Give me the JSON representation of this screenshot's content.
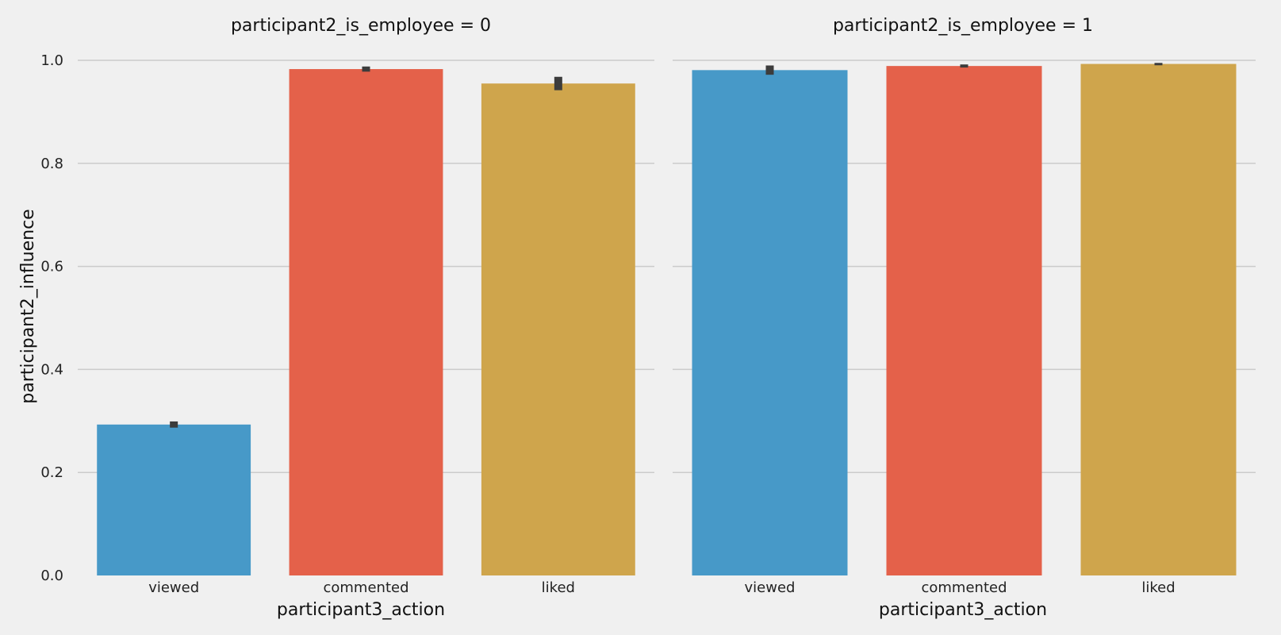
{
  "chart_data": {
    "type": "bar",
    "facet_variable": "participant2_is_employee",
    "xlabel": "participant3_action",
    "ylabel": "participant2_influence",
    "ylim": [
      0,
      1.0
    ],
    "yticks": [
      "0.0",
      "0.2",
      "0.4",
      "0.6",
      "0.8",
      "1.0"
    ],
    "ytick_values": [
      0,
      0.2,
      0.4,
      0.6,
      0.8,
      1.0
    ],
    "grid": true,
    "colors": {
      "viewed": "#4799c8",
      "commented": "#e4614a",
      "liked": "#cfa54c",
      "error_bar": "#3c3c3c"
    },
    "categories": [
      "viewed",
      "commented",
      "liked"
    ],
    "panels": [
      {
        "title": "participant2_is_employee = 0",
        "values": [
          0.293,
          0.983,
          0.955
        ],
        "ci_low": [
          0.287,
          0.978,
          0.942
        ],
        "ci_high": [
          0.299,
          0.988,
          0.968
        ]
      },
      {
        "title": "participant2_is_employee = 1",
        "values": [
          0.981,
          0.989,
          0.993
        ],
        "ci_low": [
          0.972,
          0.986,
          0.991
        ],
        "ci_high": [
          0.99,
          0.992,
          0.995
        ]
      }
    ]
  }
}
